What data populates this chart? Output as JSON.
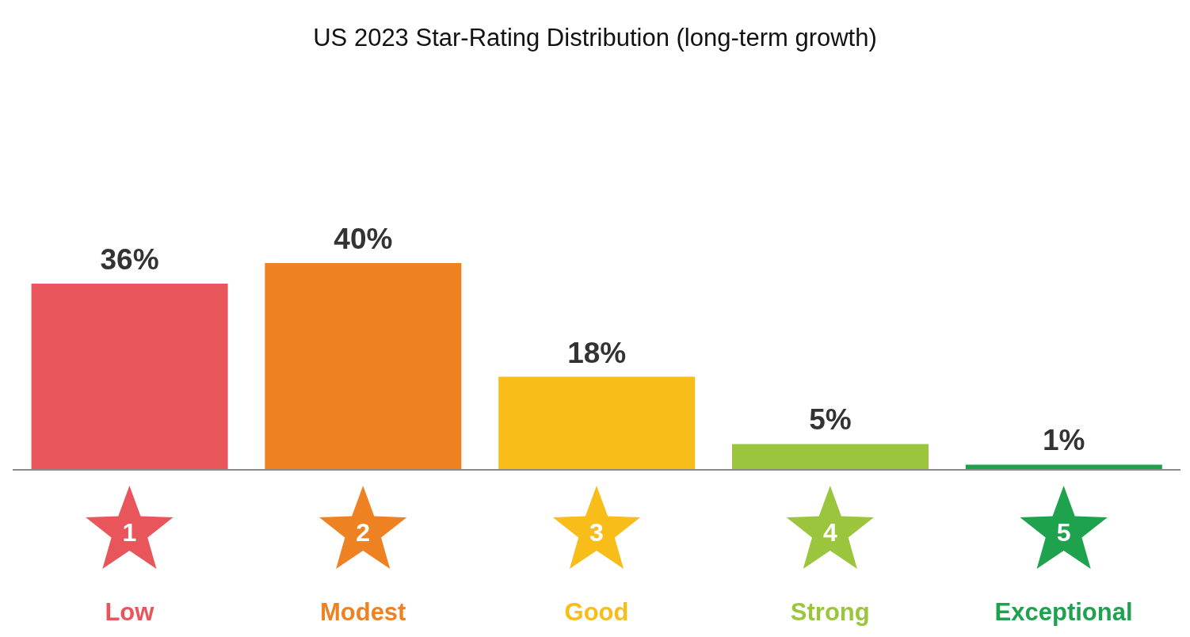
{
  "chart_data": {
    "type": "bar",
    "title": "US 2023 Star-Rating Distribution (long-term growth)",
    "categories": [
      "Low",
      "Modest",
      "Good",
      "Strong",
      "Exceptional"
    ],
    "values": [
      36,
      40,
      18,
      5,
      1
    ],
    "value_labels": [
      "36%",
      "40%",
      "18%",
      "5%",
      "1%"
    ],
    "colors": [
      "#e8555a",
      "#ee8223",
      "#f9bd19",
      "#9bc53d",
      "#1ea24e"
    ],
    "annotations": [
      "1",
      "2",
      "3",
      "4",
      "5"
    ],
    "grid": false,
    "legend": false
  }
}
